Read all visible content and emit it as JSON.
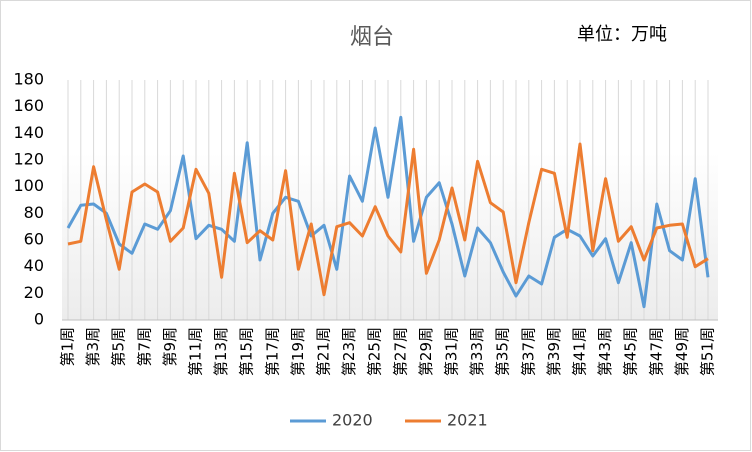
{
  "chart_data": {
    "type": "line",
    "title": "烟台",
    "subtitle": "单位：万吨",
    "categories": [
      "第1周",
      null,
      "第3周",
      null,
      "第5周",
      null,
      "第7周",
      null,
      "第9周",
      null,
      "第11周",
      null,
      "第13周",
      null,
      "第15周",
      null,
      "第17周",
      null,
      "第19周",
      null,
      "第21周",
      null,
      "第23周",
      null,
      "第25周",
      null,
      "第27周",
      null,
      "第29周",
      null,
      "第31周",
      null,
      "第33周",
      null,
      "第35周",
      null,
      "第37周",
      null,
      "第39周",
      null,
      "第41周",
      null,
      "第43周",
      null,
      "第45周",
      null,
      "第47周",
      null,
      "第49周",
      null,
      "第51周"
    ],
    "series": [
      {
        "name": "2020",
        "color": "#5b9bd5",
        "values": [
          69,
          86,
          87,
          80,
          57,
          50,
          72,
          68,
          82,
          123,
          61,
          71,
          68,
          59,
          133,
          45,
          80,
          92,
          89,
          63,
          71,
          38,
          108,
          89,
          144,
          92,
          152,
          59,
          92,
          103,
          72,
          33,
          69,
          58,
          36,
          18,
          33,
          27,
          62,
          68,
          63,
          48,
          61,
          28,
          58,
          10,
          87,
          52,
          45,
          106,
          32
        ]
      },
      {
        "name": "2021",
        "color": "#ed7d31",
        "values": [
          57,
          59,
          115,
          75,
          38,
          96,
          102,
          96,
          59,
          69,
          113,
          95,
          32,
          110,
          58,
          67,
          60,
          112,
          38,
          72,
          19,
          70,
          73,
          63,
          85,
          63,
          51,
          128,
          35,
          60,
          99,
          60,
          119,
          88,
          81,
          28,
          73,
          113,
          110,
          62,
          132,
          52,
          106,
          59,
          70,
          45,
          69,
          71,
          72,
          40,
          46
        ]
      }
    ],
    "ylim": [
      0,
      180
    ],
    "yticks": [
      0,
      20,
      40,
      60,
      80,
      100,
      120,
      140,
      160,
      180
    ],
    "legend": "bottom"
  }
}
